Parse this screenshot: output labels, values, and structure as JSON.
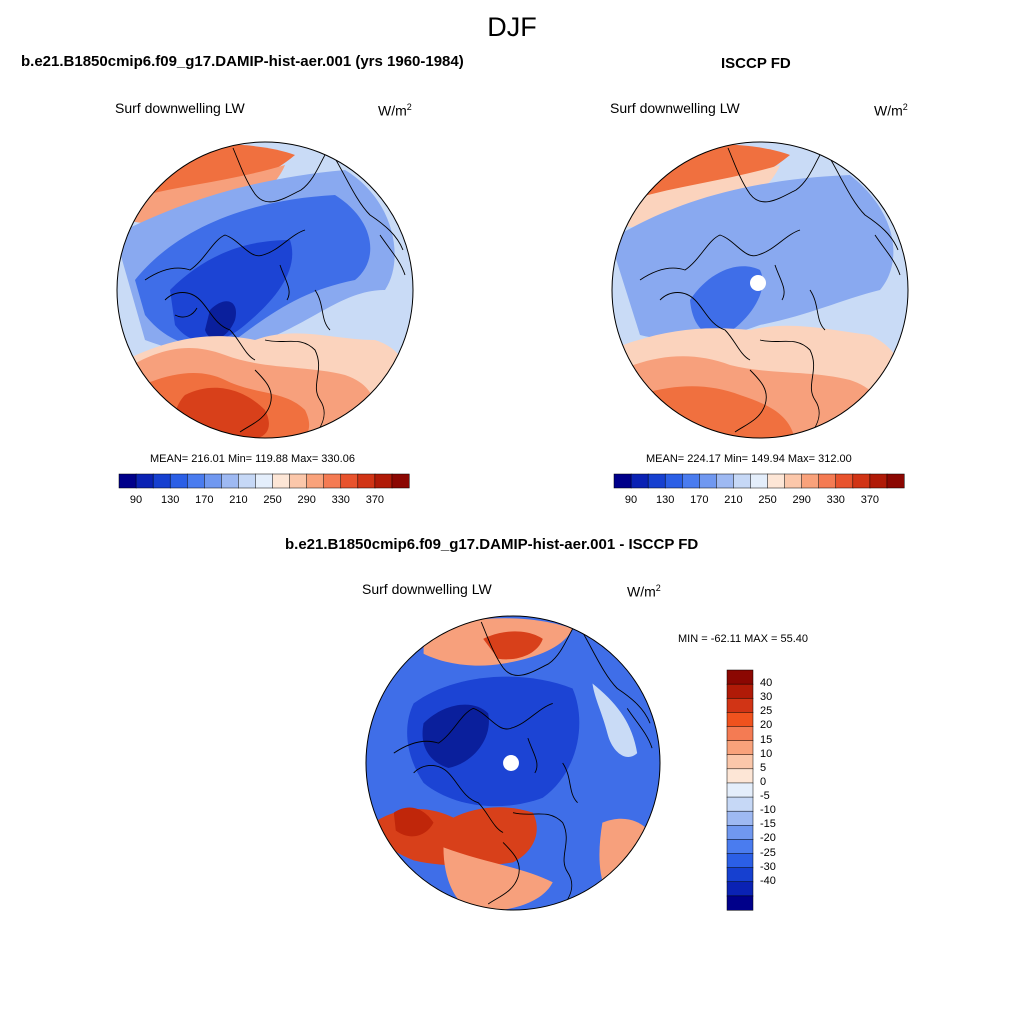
{
  "figure": {
    "title": "DJF",
    "units_base": "W/m",
    "units_exp": "2"
  },
  "panels": [
    {
      "id": "model",
      "title": "b.e21.B1850cmip6.f09_g17.DAMIP-hist-aer.001 (yrs 1960-1984)",
      "variable": "Surf downwelling LW",
      "stats": "MEAN= 216.01  Min= 119.88  Max= 330.06",
      "mean": 216.01,
      "min": 119.88,
      "max": 330.06
    },
    {
      "id": "obs",
      "title": "ISCCP FD",
      "variable": "Surf downwelling LW",
      "stats": "MEAN= 224.17  Min= 149.94  Max= 312.00",
      "mean": 224.17,
      "min": 149.94,
      "max": 312.0
    },
    {
      "id": "diff",
      "title": "b.e21.B1850cmip6.f09_g17.DAMIP-hist-aer.001 - ISCCP FD",
      "variable": "Surf downwelling LW",
      "stats": "MIN = -62.11 MAX =  55.40",
      "min": -62.11,
      "max": 55.4
    }
  ],
  "colorbar_abs": {
    "tick_labels": [
      "90",
      "130",
      "170",
      "210",
      "250",
      "290",
      "330",
      "370"
    ],
    "colors": [
      "#00008a",
      "#0a22b4",
      "#1640d0",
      "#2b5fe6",
      "#4a7cef",
      "#7098f0",
      "#9eb9f2",
      "#c6d8f6",
      "#e4eefb",
      "#fde6d6",
      "#fbc7aa",
      "#f9a27b",
      "#f47b53",
      "#e8532d",
      "#d13415",
      "#b01a07",
      "#8b0702"
    ]
  },
  "colorbar_diff": {
    "tick_labels": [
      "40",
      "30",
      "25",
      "20",
      "15",
      "10",
      "5",
      "0",
      "-5",
      "-10",
      "-15",
      "-20",
      "-25",
      "-30",
      "-40"
    ],
    "colors": [
      "#8b0702",
      "#b01a07",
      "#d13415",
      "#f0521e",
      "#f47b53",
      "#f9a27b",
      "#fbc7aa",
      "#fde6d6",
      "#e4eefb",
      "#c6d8f6",
      "#9eb9f2",
      "#7098f0",
      "#4a7cef",
      "#2b5fe6",
      "#1640d0",
      "#0a22b4",
      "#00008a"
    ]
  },
  "map_colors": {
    "deep_blue": "#1c44d4",
    "mid_blue": "#3f6ee8",
    "light_blue": "#89a9f0",
    "pale_blue": "#c9dbf6",
    "pale_red": "#fbd3bd",
    "light_red": "#f7a07c",
    "mid_red": "#f0703f",
    "deep_red": "#d8401a",
    "navy": "#0a1f9c",
    "dark_red": "#c0260a"
  }
}
